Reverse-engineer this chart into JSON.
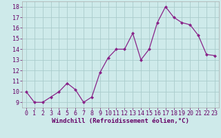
{
  "x": [
    0,
    1,
    2,
    3,
    4,
    5,
    6,
    7,
    8,
    9,
    10,
    11,
    12,
    13,
    14,
    15,
    16,
    17,
    18,
    19,
    20,
    21,
    22,
    23
  ],
  "y": [
    10,
    9,
    9,
    9.5,
    10,
    10.8,
    10.2,
    9,
    9.5,
    11.8,
    13.2,
    14,
    14,
    15.5,
    13,
    14,
    16.5,
    18,
    17,
    16.5,
    16.3,
    15.3,
    13.5,
    13.4
  ],
  "line_color": "#882288",
  "marker": "D",
  "marker_size": 2.0,
  "bg_color": "#ceeaea",
  "grid_color": "#aacccc",
  "xlabel": "Windchill (Refroidissement éolien,°C)",
  "xlabel_fontsize": 6.5,
  "tick_fontsize": 6.0,
  "ylim": [
    8.5,
    18.5
  ],
  "xlim": [
    -0.5,
    23.5
  ],
  "yticks": [
    9,
    10,
    11,
    12,
    13,
    14,
    15,
    16,
    17,
    18
  ],
  "xticks": [
    0,
    1,
    2,
    3,
    4,
    5,
    6,
    7,
    8,
    9,
    10,
    11,
    12,
    13,
    14,
    15,
    16,
    17,
    18,
    19,
    20,
    21,
    22,
    23
  ],
  "label_color": "#660066"
}
